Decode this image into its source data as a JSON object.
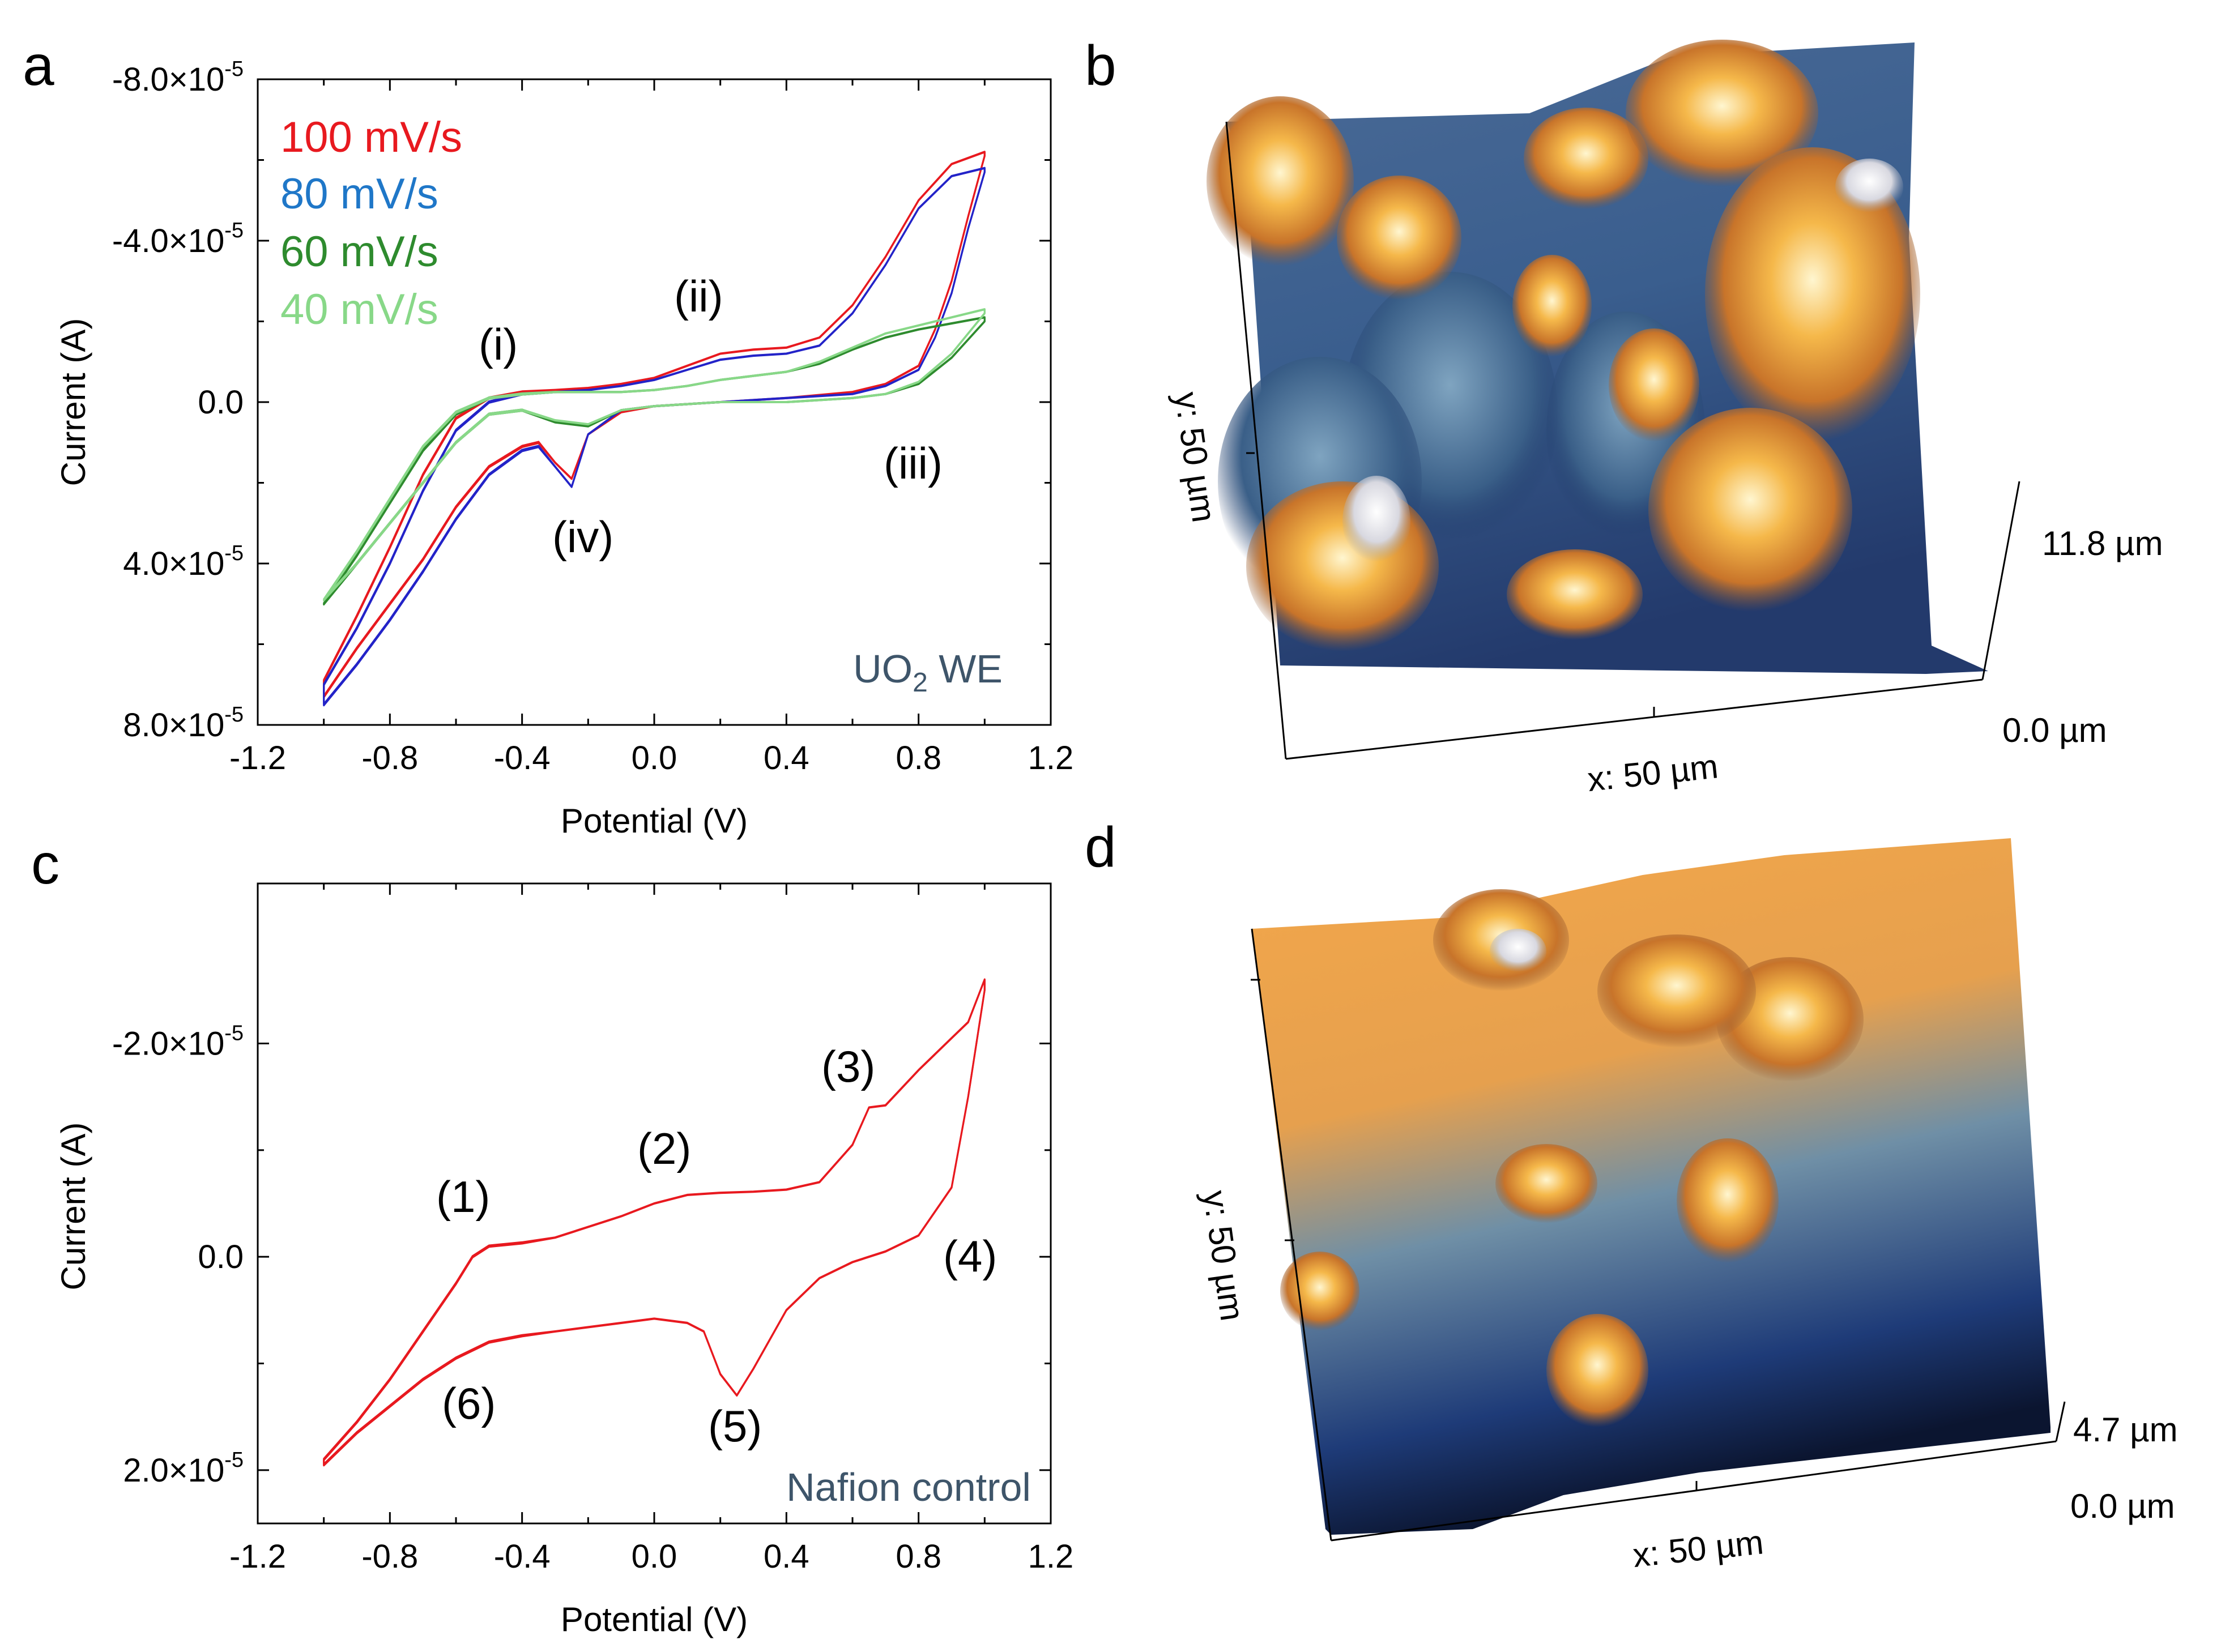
{
  "panels": {
    "a": "a",
    "b": "b",
    "c": "c",
    "d": "d"
  },
  "colors": {
    "red": "#e8191f",
    "blue": "#2323c8",
    "legend_blue": "#1f77c8",
    "dark_green": "#2e8b2e",
    "light_green": "#88d888",
    "black": "#000000",
    "annotation_slate": "#3e556a"
  },
  "chart_data": [
    {
      "panel": "a",
      "type": "line",
      "subtype": "cyclic voltammogram",
      "xlabel": "Potential (V)",
      "ylabel": "Current (A)",
      "xlim": [
        -1.2,
        1.2
      ],
      "ylim": [
        -8e-05,
        8e-05
      ],
      "y_inverted": true,
      "xticks": [
        "-1.2",
        "-0.8",
        "-0.4",
        "0.0",
        "0.4",
        "0.8",
        "1.2"
      ],
      "xtick_values": [
        -1.2,
        -0.8,
        -0.4,
        0.0,
        0.4,
        0.8,
        1.2
      ],
      "yticks": [
        {
          "mantissa": "-8.0",
          "exp": "-5",
          "value": -8e-05
        },
        {
          "mantissa": "-4.0",
          "exp": "-5",
          "value": -4e-05
        },
        {
          "plain": "0.0",
          "value": 0
        },
        {
          "mantissa": "4.0",
          "exp": "-5",
          "value": 4e-05
        },
        {
          "mantissa": "8.0",
          "exp": "-5",
          "value": 8e-05
        }
      ],
      "legend": [
        {
          "label": "100 mV/s",
          "color": "#e8191f"
        },
        {
          "label": "80 mV/s",
          "color": "#1f77c8"
        },
        {
          "label": "60 mV/s",
          "color": "#2e8b2e"
        },
        {
          "label": "40 mV/s",
          "color": "#88d888"
        }
      ],
      "annotations": [
        "(i)",
        "(ii)",
        "(iii)",
        "(iv)"
      ],
      "corner_label": {
        "main": "UO",
        "sub": "2",
        "rest": " WE"
      },
      "series": [
        {
          "name": "100 mV/s",
          "color": "#e8191f",
          "upper": [
            [
              -1.0,
              6.9e-05
            ],
            [
              -0.9,
              5.3e-05
            ],
            [
              -0.8,
              3.6e-05
            ],
            [
              -0.7,
              1.8e-05
            ],
            [
              -0.6,
              4e-06
            ],
            [
              -0.5,
              -1e-06
            ],
            [
              -0.4,
              -2.5e-06
            ],
            [
              -0.3,
              -3e-06
            ],
            [
              -0.2,
              -3.5e-06
            ],
            [
              -0.1,
              -4.5e-06
            ],
            [
              0.0,
              -6e-06
            ],
            [
              0.1,
              -9e-06
            ],
            [
              0.2,
              -1.2e-05
            ],
            [
              0.3,
              -1.3e-05
            ],
            [
              0.4,
              -1.35e-05
            ],
            [
              0.5,
              -1.6e-05
            ],
            [
              0.6,
              -2.4e-05
            ],
            [
              0.7,
              -3.6e-05
            ],
            [
              0.8,
              -5e-05
            ],
            [
              0.9,
              -5.9e-05
            ],
            [
              1.0,
              -6.2e-05
            ]
          ],
          "lower": [
            [
              1.0,
              -6.1e-05
            ],
            [
              0.95,
              -4.6e-05
            ],
            [
              0.9,
              -3e-05
            ],
            [
              0.85,
              -1.8e-05
            ],
            [
              0.8,
              -9e-06
            ],
            [
              0.7,
              -4.5e-06
            ],
            [
              0.6,
              -2.5e-06
            ],
            [
              0.4,
              -1e-06
            ],
            [
              0.2,
              0
            ],
            [
              0.0,
              1e-06
            ],
            [
              -0.1,
              2.5e-06
            ],
            [
              -0.2,
              8e-06
            ],
            [
              -0.25,
              1.9e-05
            ],
            [
              -0.3,
              1.5e-05
            ],
            [
              -0.35,
              1e-05
            ],
            [
              -0.4,
              1.1e-05
            ],
            [
              -0.5,
              1.6e-05
            ],
            [
              -0.6,
              2.6e-05
            ],
            [
              -0.7,
              3.9e-05
            ],
            [
              -0.8,
              5e-05
            ],
            [
              -0.9,
              6.1e-05
            ],
            [
              -1.0,
              7.3e-05
            ]
          ]
        },
        {
          "name": "80 mV/s",
          "color": "#2323c8",
          "upper": [
            [
              -1.0,
              7e-05
            ],
            [
              -0.9,
              5.6e-05
            ],
            [
              -0.8,
              4e-05
            ],
            [
              -0.7,
              2.2e-05
            ],
            [
              -0.6,
              7e-06
            ],
            [
              -0.5,
              0
            ],
            [
              -0.4,
              -2e-06
            ],
            [
              -0.3,
              -2.5e-06
            ],
            [
              -0.2,
              -3e-06
            ],
            [
              -0.1,
              -4e-06
            ],
            [
              0.0,
              -5.5e-06
            ],
            [
              0.1,
              -8e-06
            ],
            [
              0.2,
              -1.05e-05
            ],
            [
              0.3,
              -1.15e-05
            ],
            [
              0.4,
              -1.2e-05
            ],
            [
              0.5,
              -1.4e-05
            ],
            [
              0.6,
              -2.2e-05
            ],
            [
              0.7,
              -3.4e-05
            ],
            [
              0.8,
              -4.8e-05
            ],
            [
              0.9,
              -5.6e-05
            ],
            [
              1.0,
              -5.8e-05
            ]
          ],
          "lower": [
            [
              1.0,
              -5.7e-05
            ],
            [
              0.95,
              -4.3e-05
            ],
            [
              0.9,
              -2.7e-05
            ],
            [
              0.85,
              -1.6e-05
            ],
            [
              0.8,
              -8e-06
            ],
            [
              0.7,
              -4e-06
            ],
            [
              0.6,
              -2e-06
            ],
            [
              0.4,
              -1e-06
            ],
            [
              0.2,
              0
            ],
            [
              0.0,
              1e-06
            ],
            [
              -0.1,
              2e-06
            ],
            [
              -0.2,
              8e-06
            ],
            [
              -0.25,
              2.1e-05
            ],
            [
              -0.3,
              1.6e-05
            ],
            [
              -0.35,
              1.1e-05
            ],
            [
              -0.4,
              1.2e-05
            ],
            [
              -0.5,
              1.8e-05
            ],
            [
              -0.6,
              2.9e-05
            ],
            [
              -0.7,
              4.2e-05
            ],
            [
              -0.8,
              5.4e-05
            ],
            [
              -0.9,
              6.5e-05
            ],
            [
              -1.0,
              7.5e-05
            ]
          ]
        },
        {
          "name": "60 mV/s",
          "color": "#2e8b2e",
          "upper": [
            [
              -1.0,
              5e-05
            ],
            [
              -0.9,
              3.8e-05
            ],
            [
              -0.8,
              2.5e-05
            ],
            [
              -0.7,
              1.2e-05
            ],
            [
              -0.6,
              3e-06
            ],
            [
              -0.5,
              -1e-06
            ],
            [
              -0.4,
              -2e-06
            ],
            [
              -0.3,
              -2.5e-06
            ],
            [
              -0.2,
              -2.5e-06
            ],
            [
              -0.1,
              -2.5e-06
            ],
            [
              0.0,
              -3e-06
            ],
            [
              0.1,
              -4e-06
            ],
            [
              0.2,
              -5.5e-06
            ],
            [
              0.3,
              -6.5e-06
            ],
            [
              0.4,
              -7.5e-06
            ],
            [
              0.5,
              -9.5e-06
            ],
            [
              0.6,
              -1.3e-05
            ],
            [
              0.7,
              -1.6e-05
            ],
            [
              0.8,
              -1.8e-05
            ],
            [
              0.9,
              -1.95e-05
            ],
            [
              1.0,
              -2.1e-05
            ]
          ],
          "lower": [
            [
              1.0,
              -2e-05
            ],
            [
              0.9,
              -1.1e-05
            ],
            [
              0.8,
              -4.5e-06
            ],
            [
              0.7,
              -2e-06
            ],
            [
              0.6,
              -1e-06
            ],
            [
              0.4,
              0
            ],
            [
              0.2,
              0
            ],
            [
              0.0,
              1e-06
            ],
            [
              -0.1,
              2e-06
            ],
            [
              -0.2,
              6e-06
            ],
            [
              -0.3,
              5e-06
            ],
            [
              -0.4,
              2e-06
            ],
            [
              -0.5,
              3e-06
            ],
            [
              -0.6,
              1e-05
            ],
            [
              -0.7,
              2e-05
            ],
            [
              -0.8,
              3e-05
            ],
            [
              -0.9,
              4e-05
            ],
            [
              -1.0,
              5e-05
            ]
          ]
        },
        {
          "name": "40 mV/s",
          "color": "#88d888",
          "upper": [
            [
              -1.0,
              4.9e-05
            ],
            [
              -0.9,
              3.7e-05
            ],
            [
              -0.8,
              2.4e-05
            ],
            [
              -0.7,
              1.1e-05
            ],
            [
              -0.6,
              2.5e-06
            ],
            [
              -0.5,
              -1e-06
            ],
            [
              -0.4,
              -2e-06
            ],
            [
              -0.3,
              -2.5e-06
            ],
            [
              -0.2,
              -2.5e-06
            ],
            [
              -0.1,
              -2.5e-06
            ],
            [
              0.0,
              -3e-06
            ],
            [
              0.1,
              -4e-06
            ],
            [
              0.2,
              -5.5e-06
            ],
            [
              0.3,
              -6.5e-06
            ],
            [
              0.4,
              -7.5e-06
            ],
            [
              0.5,
              -1e-05
            ],
            [
              0.6,
              -1.35e-05
            ],
            [
              0.7,
              -1.7e-05
            ],
            [
              0.8,
              -1.9e-05
            ],
            [
              0.9,
              -2.1e-05
            ],
            [
              1.0,
              -2.3e-05
            ]
          ],
          "lower": [
            [
              1.0,
              -2.2e-05
            ],
            [
              0.9,
              -1.2e-05
            ],
            [
              0.8,
              -5e-06
            ],
            [
              0.7,
              -2e-06
            ],
            [
              0.6,
              -1e-06
            ],
            [
              0.4,
              0
            ],
            [
              0.2,
              0
            ],
            [
              0.0,
              1e-06
            ],
            [
              -0.1,
              2e-06
            ],
            [
              -0.2,
              5.5e-06
            ],
            [
              -0.3,
              4.5e-06
            ],
            [
              -0.4,
              2e-06
            ],
            [
              -0.5,
              3e-06
            ],
            [
              -0.6,
              1e-05
            ],
            [
              -0.7,
              2e-05
            ],
            [
              -0.8,
              3e-05
            ],
            [
              -0.9,
              4e-05
            ],
            [
              -1.0,
              4.9e-05
            ]
          ]
        }
      ]
    },
    {
      "panel": "c",
      "type": "line",
      "subtype": "cyclic voltammogram",
      "xlabel": "Potential (V)",
      "ylabel": "Current (A)",
      "xlim": [
        -1.2,
        1.2
      ],
      "ylim": [
        -3.5e-05,
        2.5e-05
      ],
      "y_inverted": true,
      "xticks": [
        "-1.2",
        "-0.8",
        "-0.4",
        "0.0",
        "0.4",
        "0.8",
        "1.2"
      ],
      "xtick_values": [
        -1.2,
        -0.8,
        -0.4,
        0.0,
        0.4,
        0.8,
        1.2
      ],
      "yticks": [
        {
          "mantissa": "-2.0",
          "exp": "-5",
          "value": -2e-05
        },
        {
          "plain": "0.0",
          "value": 0
        },
        {
          "mantissa": "2.0",
          "exp": "-5",
          "value": 2e-05
        }
      ],
      "annotations": [
        "(1)",
        "(2)",
        "(3)",
        "(4)",
        "(5)",
        "(6)"
      ],
      "corner_label": {
        "main": "Nafion control"
      },
      "series": [
        {
          "name": "Nafion control",
          "color": "#e8191f",
          "upper": [
            [
              -1.0,
              1.9e-05
            ],
            [
              -0.9,
              1.55e-05
            ],
            [
              -0.8,
              1.15e-05
            ],
            [
              -0.7,
              7e-06
            ],
            [
              -0.6,
              2.5e-06
            ],
            [
              -0.55,
              0
            ],
            [
              -0.5,
              -1e-06
            ],
            [
              -0.4,
              -1.3e-06
            ],
            [
              -0.3,
              -1.8e-06
            ],
            [
              -0.2,
              -2.8e-06
            ],
            [
              -0.1,
              -3.8e-06
            ],
            [
              0.0,
              -5e-06
            ],
            [
              0.1,
              -5.8e-06
            ],
            [
              0.2,
              -6e-06
            ],
            [
              0.3,
              -6.1e-06
            ],
            [
              0.4,
              -6.3e-06
            ],
            [
              0.5,
              -7e-06
            ],
            [
              0.6,
              -1.05e-05
            ],
            [
              0.65,
              -1.4e-05
            ],
            [
              0.7,
              -1.42e-05
            ],
            [
              0.8,
              -1.75e-05
            ],
            [
              0.9,
              -2.05e-05
            ],
            [
              0.95,
              -2.2e-05
            ],
            [
              1.0,
              -2.6e-05
            ]
          ],
          "lower": [
            [
              1.0,
              -2.5e-05
            ],
            [
              0.95,
              -1.5e-05
            ],
            [
              0.9,
              -6.5e-06
            ],
            [
              0.8,
              -2e-06
            ],
            [
              0.7,
              -5e-07
            ],
            [
              0.6,
              5e-07
            ],
            [
              0.5,
              2e-06
            ],
            [
              0.4,
              5e-06
            ],
            [
              0.3,
              1.05e-05
            ],
            [
              0.25,
              1.3e-05
            ],
            [
              0.2,
              1.1e-05
            ],
            [
              0.15,
              7e-06
            ],
            [
              0.1,
              6.2e-06
            ],
            [
              0.0,
              5.8e-06
            ],
            [
              -0.1,
              6.2e-06
            ],
            [
              -0.2,
              6.6e-06
            ],
            [
              -0.3,
              7e-06
            ],
            [
              -0.4,
              7.4e-06
            ],
            [
              -0.5,
              8e-06
            ],
            [
              -0.6,
              9.5e-06
            ],
            [
              -0.7,
              1.15e-05
            ],
            [
              -0.8,
              1.4e-05
            ],
            [
              -0.9,
              1.65e-05
            ],
            [
              -1.0,
              1.95e-05
            ]
          ]
        }
      ]
    }
  ],
  "afm_b": {
    "y_label": "y: 50 µm",
    "x_label": "x: 50 µm",
    "z_top": "11.8 µm",
    "z_bottom": "0.0 µm"
  },
  "afm_d": {
    "y_label": "y: 50 µm",
    "x_label": "x: 50 µm",
    "z_top": "4.7 µm",
    "z_bottom": "0.0 µm"
  }
}
